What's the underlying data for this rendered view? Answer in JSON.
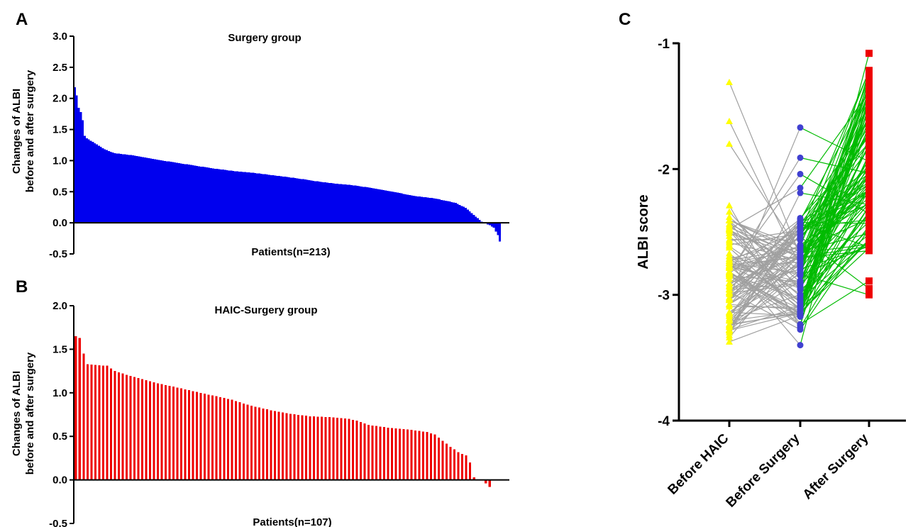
{
  "panels": {
    "a_letter": "A",
    "b_letter": "B",
    "c_letter": "C"
  },
  "colors": {
    "surgery_bars": "#0000ee",
    "haic_bars": "#ee0000",
    "before_haic": "#ffff00",
    "before_surgery": "#4040d0",
    "after_surgery": "#ee0000",
    "line_haic_to_surgery": "#a0a0a0",
    "line_surgery_to_after": "#00bb00"
  },
  "chart_data": [
    {
      "id": "A",
      "type": "bar",
      "title": "Surgery group",
      "xlabel": "Patients(n=213)",
      "ylabel_line1": "Changes of ALBI",
      "ylabel_line2": "before and after surgery",
      "ylim": [
        -0.5,
        3.0
      ],
      "yticks": [
        "-0.5",
        "0.0",
        "0.5",
        "1.0",
        "1.5",
        "2.0",
        "2.5",
        "3.0"
      ],
      "n": 213,
      "anchors": [
        [
          0,
          2.18
        ],
        [
          1,
          2.05
        ],
        [
          2,
          1.85
        ],
        [
          3,
          1.78
        ],
        [
          4,
          1.65
        ],
        [
          5,
          1.4
        ],
        [
          6,
          1.36
        ],
        [
          8,
          1.32
        ],
        [
          12,
          1.24
        ],
        [
          15,
          1.18
        ],
        [
          20,
          1.12
        ],
        [
          30,
          1.08
        ],
        [
          40,
          1.02
        ],
        [
          50,
          0.97
        ],
        [
          60,
          0.92
        ],
        [
          70,
          0.87
        ],
        [
          80,
          0.83
        ],
        [
          90,
          0.8
        ],
        [
          100,
          0.76
        ],
        [
          110,
          0.72
        ],
        [
          120,
          0.67
        ],
        [
          130,
          0.63
        ],
        [
          140,
          0.6
        ],
        [
          150,
          0.55
        ],
        [
          160,
          0.49
        ],
        [
          170,
          0.43
        ],
        [
          180,
          0.39
        ],
        [
          190,
          0.32
        ],
        [
          195,
          0.24
        ],
        [
          200,
          0.1
        ],
        [
          203,
          0.02
        ],
        [
          205,
          -0.01
        ],
        [
          207,
          -0.04
        ],
        [
          209,
          -0.08
        ],
        [
          210,
          -0.14
        ],
        [
          211,
          -0.2
        ],
        [
          212,
          -0.3
        ]
      ]
    },
    {
      "id": "B",
      "type": "bar",
      "title": "HAIC-Surgery group",
      "xlabel": "Patients(n=107)",
      "ylabel_line1": "Changes of ALBI",
      "ylabel_line2": "before and after surgery",
      "ylim": [
        -0.5,
        2.0
      ],
      "yticks": [
        "-0.5",
        "0.0",
        "0.5",
        "1.0",
        "1.5",
        "2.0"
      ],
      "n": 107,
      "anchors": [
        [
          0,
          1.65
        ],
        [
          1,
          1.63
        ],
        [
          2,
          1.45
        ],
        [
          3,
          1.33
        ],
        [
          5,
          1.32
        ],
        [
          8,
          1.31
        ],
        [
          10,
          1.25
        ],
        [
          15,
          1.18
        ],
        [
          20,
          1.12
        ],
        [
          25,
          1.07
        ],
        [
          30,
          1.02
        ],
        [
          35,
          0.97
        ],
        [
          40,
          0.92
        ],
        [
          45,
          0.85
        ],
        [
          50,
          0.8
        ],
        [
          55,
          0.76
        ],
        [
          60,
          0.73
        ],
        [
          65,
          0.72
        ],
        [
          70,
          0.7
        ],
        [
          72,
          0.68
        ],
        [
          75,
          0.63
        ],
        [
          80,
          0.6
        ],
        [
          85,
          0.58
        ],
        [
          90,
          0.55
        ],
        [
          92,
          0.52
        ],
        [
          94,
          0.45
        ],
        [
          96,
          0.38
        ],
        [
          98,
          0.32
        ],
        [
          100,
          0.28
        ],
        [
          101,
          0.2
        ],
        [
          102,
          0.03
        ],
        [
          103,
          0.0
        ],
        [
          104,
          0.0
        ],
        [
          105,
          -0.04
        ],
        [
          106,
          -0.08
        ]
      ]
    },
    {
      "id": "C",
      "type": "line",
      "title": "",
      "ylabel": "ALBI score",
      "ylim": [
        -4,
        -1
      ],
      "yticks": [
        "-4",
        "-3",
        "-2",
        "-1"
      ],
      "categories": [
        "Before HAIC",
        "Before Surgery",
        "After Surgery"
      ],
      "n": 107,
      "series": [
        {
          "name": "Before HAIC",
          "range": [
            -3.38,
            -2.38
          ],
          "outliers": [
            -1.31,
            -1.62,
            -1.8,
            -2.29,
            -2.34
          ]
        },
        {
          "name": "Before Surgery",
          "range": [
            -3.28,
            -2.38
          ],
          "outliers": [
            -1.67,
            -1.91,
            -2.04,
            -2.15,
            -2.19,
            -3.4
          ]
        },
        {
          "name": "After Surgery",
          "range": [
            -2.65,
            -1.21
          ],
          "outliers": [
            -1.08,
            -2.89,
            -2.95,
            -3.0
          ]
        }
      ]
    }
  ]
}
